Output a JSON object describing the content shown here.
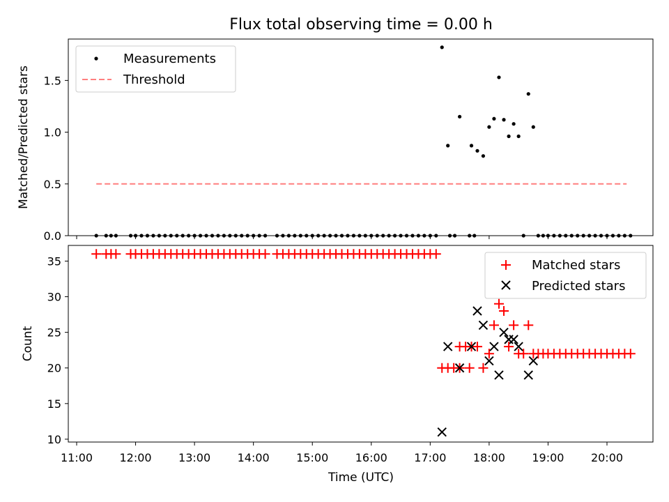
{
  "title": "Flux total observing time = 0.00 h",
  "colors": {
    "measurement": "#000000",
    "threshold": "#ff7f7f",
    "matched": "#ff0000",
    "predicted": "#000000"
  },
  "chart_data": [
    {
      "type": "scatter",
      "ylabel": "Matched/Predicted stars",
      "ylim": [
        0,
        1.9
      ],
      "yticks": [
        0.0,
        0.5,
        1.0,
        1.5
      ],
      "ytick_labels": [
        "0.0",
        "0.5",
        "1.0",
        "1.5"
      ],
      "grid": false,
      "legend_position": "top-left",
      "legend": [
        "Measurements",
        "Threshold"
      ],
      "series": [
        {
          "name": "Measurements",
          "marker": "dot",
          "zero_times": [
            "11:20",
            "11:30",
            "11:35",
            "11:40",
            "11:55",
            "12:00",
            "12:06",
            "12:12",
            "12:18",
            "12:24",
            "12:30",
            "12:36",
            "12:42",
            "12:48",
            "12:54",
            "13:00",
            "13:06",
            "13:12",
            "13:18",
            "13:24",
            "13:30",
            "13:36",
            "13:42",
            "13:48",
            "13:54",
            "14:00",
            "14:06",
            "14:12",
            "14:24",
            "14:30",
            "14:36",
            "14:42",
            "14:48",
            "14:54",
            "15:00",
            "15:06",
            "15:12",
            "15:18",
            "15:24",
            "15:30",
            "15:36",
            "15:42",
            "15:48",
            "15:54",
            "16:00",
            "16:06",
            "16:12",
            "16:18",
            "16:24",
            "16:30",
            "16:36",
            "16:42",
            "16:48",
            "16:54",
            "17:00",
            "17:06",
            "17:20",
            "17:25",
            "17:40",
            "17:45",
            "18:35",
            "18:50",
            "18:55",
            "19:00",
            "19:06",
            "19:12",
            "19:18",
            "19:24",
            "19:30",
            "19:36",
            "19:42",
            "19:48",
            "19:54",
            "20:00",
            "20:06",
            "20:12",
            "20:18",
            "20:24"
          ],
          "points": [
            [
              "17:12",
              1.82
            ],
            [
              "17:18",
              0.87
            ],
            [
              "17:30",
              1.15
            ],
            [
              "17:42",
              0.87
            ],
            [
              "17:48",
              0.82
            ],
            [
              "17:54",
              0.77
            ],
            [
              "18:00",
              1.05
            ],
            [
              "18:05",
              1.13
            ],
            [
              "18:10",
              1.53
            ],
            [
              "18:15",
              1.12
            ],
            [
              "18:20",
              0.96
            ],
            [
              "18:25",
              1.08
            ],
            [
              "18:30",
              0.96
            ],
            [
              "18:40",
              1.37
            ],
            [
              "18:45",
              1.05
            ]
          ]
        },
        {
          "name": "Threshold",
          "marker": "dashed-line",
          "x": [
            "11:20",
            "20:20"
          ],
          "y": [
            0.5,
            0.5
          ]
        }
      ]
    },
    {
      "type": "scatter",
      "xlabel": "Time (UTC)",
      "ylabel": "Count",
      "ylim": [
        9.6,
        37.2
      ],
      "yticks": [
        10,
        15,
        20,
        25,
        30,
        35
      ],
      "ytick_labels": [
        "10",
        "15",
        "20",
        "25",
        "30",
        "35"
      ],
      "xticks": [
        "11:00",
        "12:00",
        "13:00",
        "14:00",
        "15:00",
        "16:00",
        "17:00",
        "18:00",
        "19:00",
        "20:00"
      ],
      "grid": false,
      "legend_position": "top-right",
      "legend": [
        "Matched stars",
        "Predicted stars"
      ],
      "series": [
        {
          "name": "Matched stars",
          "marker": "plus",
          "points": [
            [
              "11:20",
              36
            ],
            [
              "11:30",
              36
            ],
            [
              "11:35",
              36
            ],
            [
              "11:40",
              36
            ],
            [
              "11:55",
              36
            ],
            [
              "12:00",
              36
            ],
            [
              "12:06",
              36
            ],
            [
              "12:12",
              36
            ],
            [
              "12:18",
              36
            ],
            [
              "12:24",
              36
            ],
            [
              "12:30",
              36
            ],
            [
              "12:36",
              36
            ],
            [
              "12:42",
              36
            ],
            [
              "12:48",
              36
            ],
            [
              "12:54",
              36
            ],
            [
              "13:00",
              36
            ],
            [
              "13:06",
              36
            ],
            [
              "13:12",
              36
            ],
            [
              "13:18",
              36
            ],
            [
              "13:24",
              36
            ],
            [
              "13:30",
              36
            ],
            [
              "13:36",
              36
            ],
            [
              "13:42",
              36
            ],
            [
              "13:48",
              36
            ],
            [
              "13:54",
              36
            ],
            [
              "14:00",
              36
            ],
            [
              "14:06",
              36
            ],
            [
              "14:12",
              36
            ],
            [
              "14:24",
              36
            ],
            [
              "14:30",
              36
            ],
            [
              "14:36",
              36
            ],
            [
              "14:42",
              36
            ],
            [
              "14:48",
              36
            ],
            [
              "14:54",
              36
            ],
            [
              "15:00",
              36
            ],
            [
              "15:06",
              36
            ],
            [
              "15:12",
              36
            ],
            [
              "15:18",
              36
            ],
            [
              "15:24",
              36
            ],
            [
              "15:30",
              36
            ],
            [
              "15:36",
              36
            ],
            [
              "15:42",
              36
            ],
            [
              "15:48",
              36
            ],
            [
              "15:54",
              36
            ],
            [
              "16:00",
              36
            ],
            [
              "16:06",
              36
            ],
            [
              "16:12",
              36
            ],
            [
              "16:18",
              36
            ],
            [
              "16:24",
              36
            ],
            [
              "16:30",
              36
            ],
            [
              "16:36",
              36
            ],
            [
              "16:42",
              36
            ],
            [
              "16:48",
              36
            ],
            [
              "16:54",
              36
            ],
            [
              "17:00",
              36
            ],
            [
              "17:06",
              36
            ],
            [
              "17:12",
              20
            ],
            [
              "17:18",
              20
            ],
            [
              "17:24",
              20
            ],
            [
              "17:30",
              20
            ],
            [
              "17:30",
              23
            ],
            [
              "17:36",
              23
            ],
            [
              "17:42",
              23
            ],
            [
              "17:48",
              23
            ],
            [
              "17:40",
              20
            ],
            [
              "17:54",
              20
            ],
            [
              "18:00",
              22
            ],
            [
              "18:05",
              26
            ],
            [
              "18:10",
              29
            ],
            [
              "18:15",
              28
            ],
            [
              "18:20",
              23
            ],
            [
              "18:25",
              26
            ],
            [
              "18:30",
              22
            ],
            [
              "18:35",
              22
            ],
            [
              "18:40",
              26
            ],
            [
              "18:45",
              22
            ],
            [
              "18:50",
              22
            ],
            [
              "18:55",
              22
            ],
            [
              "19:00",
              22
            ],
            [
              "19:06",
              22
            ],
            [
              "19:12",
              22
            ],
            [
              "19:18",
              22
            ],
            [
              "19:24",
              22
            ],
            [
              "19:30",
              22
            ],
            [
              "19:36",
              22
            ],
            [
              "19:42",
              22
            ],
            [
              "19:48",
              22
            ],
            [
              "19:54",
              22
            ],
            [
              "20:00",
              22
            ],
            [
              "20:06",
              22
            ],
            [
              "20:12",
              22
            ],
            [
              "20:18",
              22
            ],
            [
              "20:24",
              22
            ]
          ]
        },
        {
          "name": "Predicted stars",
          "marker": "x",
          "points": [
            [
              "17:12",
              11
            ],
            [
              "17:18",
              23
            ],
            [
              "17:30",
              20
            ],
            [
              "17:42",
              23
            ],
            [
              "17:48",
              28
            ],
            [
              "17:54",
              26
            ],
            [
              "18:00",
              21
            ],
            [
              "18:05",
              23
            ],
            [
              "18:10",
              19
            ],
            [
              "18:15",
              25
            ],
            [
              "18:20",
              24
            ],
            [
              "18:25",
              24
            ],
            [
              "18:30",
              23
            ],
            [
              "18:40",
              19
            ],
            [
              "18:45",
              21
            ]
          ]
        }
      ]
    }
  ]
}
